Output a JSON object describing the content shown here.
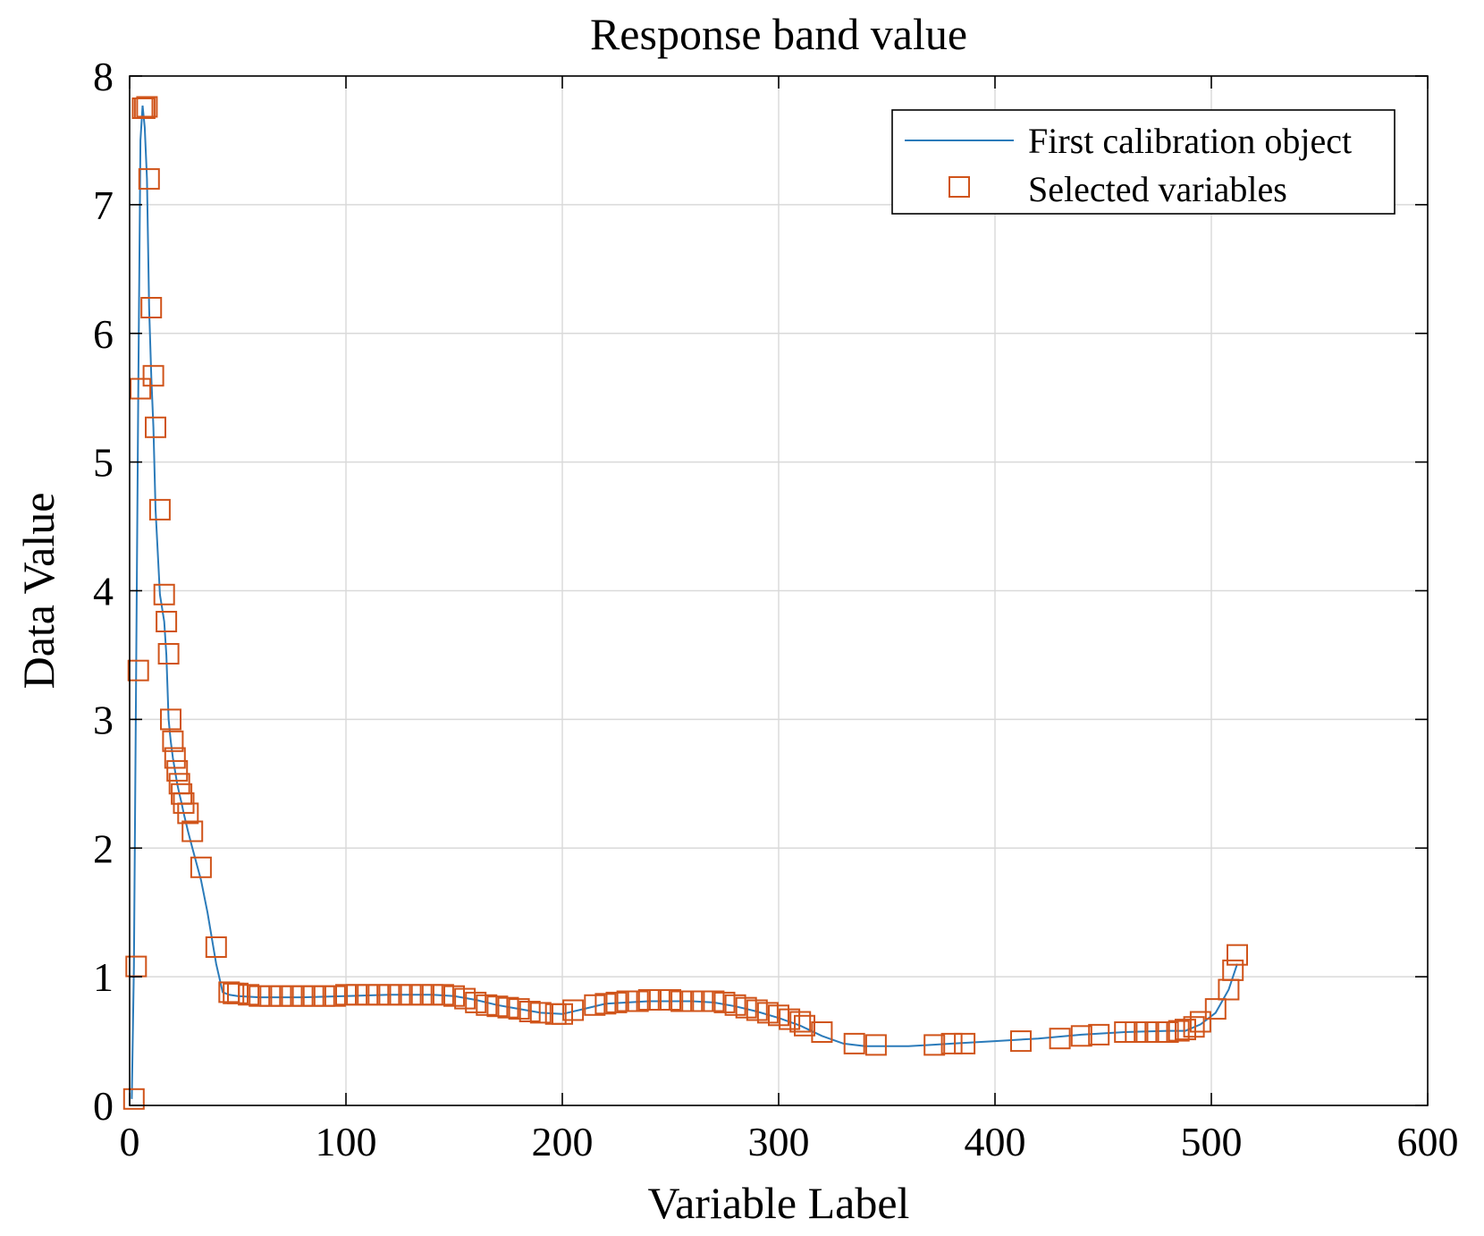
{
  "chart_data": {
    "type": "line",
    "title": "Response band value",
    "xlabel": "Variable Label",
    "ylabel": "Data Value",
    "xlim": [
      0,
      600
    ],
    "ylim": [
      0,
      8
    ],
    "xticks": [
      0,
      100,
      200,
      300,
      400,
      500,
      600
    ],
    "yticks": [
      0,
      1,
      2,
      3,
      4,
      5,
      6,
      7,
      8
    ],
    "grid": true,
    "legend": {
      "placement": "top-right"
    },
    "colors": {
      "line": "#2b7bba",
      "marker": "#d0541a",
      "grid": "#d9d9d9",
      "axis": "#000000"
    },
    "series": [
      {
        "name": "First calibration object",
        "kind": "line",
        "x": [
          1,
          2,
          3,
          4,
          5,
          6,
          7,
          8,
          9,
          10,
          11,
          12,
          14,
          16,
          17,
          18,
          19,
          20,
          21,
          22,
          23,
          24,
          25,
          27,
          29,
          33,
          36,
          40,
          43,
          46,
          50,
          60,
          80,
          100,
          120,
          140,
          150,
          160,
          170,
          180,
          190,
          200,
          210,
          220,
          230,
          240,
          250,
          260,
          270,
          280,
          290,
          300,
          310,
          320,
          330,
          340,
          350,
          360,
          370,
          380,
          400,
          420,
          440,
          460,
          480,
          488,
          495,
          502,
          508,
          512
        ],
        "y": [
          0.05,
          1.08,
          3.38,
          5.57,
          7.5,
          7.77,
          7.6,
          7.2,
          6.2,
          5.67,
          5.27,
          4.63,
          3.97,
          3.76,
          3.5,
          3.0,
          2.83,
          2.7,
          2.6,
          2.5,
          2.42,
          2.35,
          2.27,
          2.13,
          2.0,
          1.75,
          1.5,
          1.1,
          0.88,
          0.86,
          0.85,
          0.84,
          0.84,
          0.85,
          0.86,
          0.86,
          0.85,
          0.82,
          0.78,
          0.75,
          0.72,
          0.71,
          0.75,
          0.79,
          0.8,
          0.81,
          0.81,
          0.81,
          0.8,
          0.77,
          0.73,
          0.68,
          0.62,
          0.54,
          0.48,
          0.46,
          0.46,
          0.46,
          0.47,
          0.48,
          0.5,
          0.52,
          0.55,
          0.57,
          0.58,
          0.58,
          0.63,
          0.72,
          0.9,
          1.1
        ]
      },
      {
        "name": "Selected variables",
        "kind": "markers",
        "marker": "square",
        "x": [
          2,
          3,
          4,
          5,
          6,
          7,
          8,
          9,
          10,
          11,
          12,
          14,
          16,
          17,
          18,
          19,
          20,
          21,
          22,
          23,
          24,
          25,
          27,
          29,
          33,
          40,
          46,
          48,
          50,
          55,
          60,
          65,
          70,
          75,
          80,
          85,
          90,
          95,
          100,
          105,
          110,
          115,
          120,
          125,
          130,
          135,
          140,
          145,
          150,
          155,
          160,
          165,
          170,
          175,
          180,
          185,
          190,
          197,
          200,
          205,
          215,
          220,
          225,
          230,
          235,
          240,
          245,
          250,
          255,
          260,
          265,
          270,
          275,
          280,
          285,
          290,
          295,
          300,
          305,
          310,
          312,
          320,
          335,
          345,
          372,
          380,
          386,
          412,
          430,
          440,
          448,
          460,
          465,
          470,
          475,
          480,
          485,
          488,
          492,
          495,
          502,
          508,
          510,
          512
        ],
        "y": [
          0.05,
          1.08,
          3.38,
          5.57,
          7.75,
          7.75,
          7.76,
          7.2,
          6.2,
          5.67,
          5.27,
          4.63,
          3.97,
          3.76,
          3.51,
          3.0,
          2.83,
          2.7,
          2.6,
          2.5,
          2.42,
          2.35,
          2.27,
          2.13,
          1.85,
          1.23,
          0.88,
          0.87,
          0.87,
          0.86,
          0.85,
          0.85,
          0.85,
          0.85,
          0.85,
          0.85,
          0.85,
          0.85,
          0.86,
          0.86,
          0.86,
          0.86,
          0.86,
          0.86,
          0.86,
          0.86,
          0.86,
          0.86,
          0.85,
          0.83,
          0.8,
          0.78,
          0.77,
          0.76,
          0.75,
          0.73,
          0.72,
          0.71,
          0.71,
          0.74,
          0.78,
          0.79,
          0.8,
          0.81,
          0.81,
          0.82,
          0.82,
          0.82,
          0.81,
          0.81,
          0.81,
          0.81,
          0.8,
          0.78,
          0.76,
          0.74,
          0.72,
          0.7,
          0.67,
          0.65,
          0.62,
          0.57,
          0.48,
          0.47,
          0.47,
          0.48,
          0.48,
          0.5,
          0.52,
          0.54,
          0.55,
          0.57,
          0.57,
          0.57,
          0.57,
          0.57,
          0.58,
          0.59,
          0.61,
          0.65,
          0.75,
          0.9,
          1.05,
          1.17
        ]
      }
    ]
  }
}
